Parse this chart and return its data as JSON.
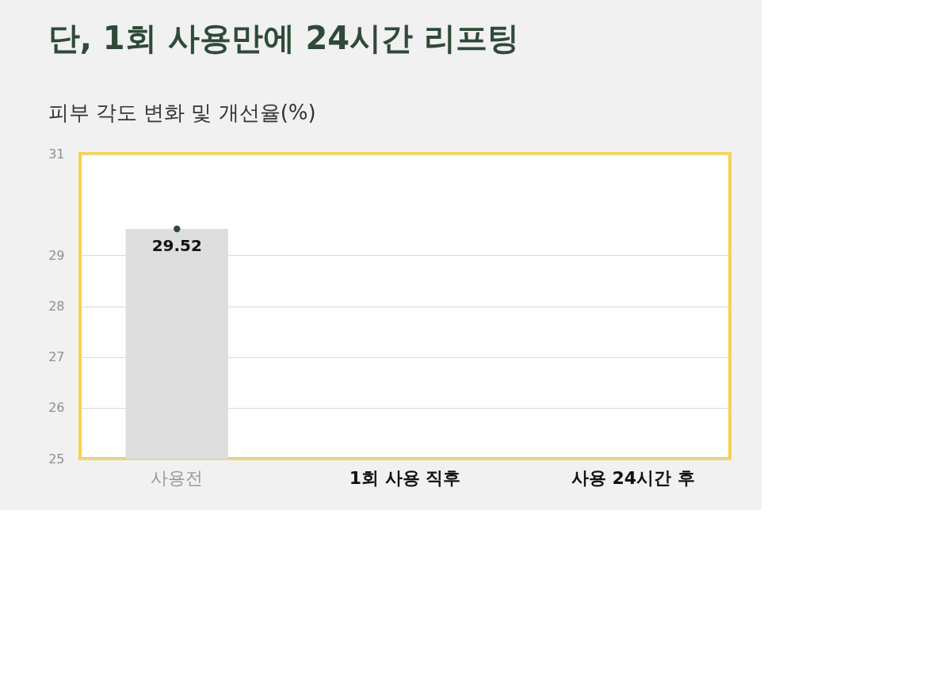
{
  "chart_data": {
    "type": "bar",
    "title": "단, 1회 사용만에  24시간 리프팅",
    "subtitle": "피부 각도 변화  및 개선율(%)",
    "categories": [
      "사용전",
      "1회 사용 직후",
      "사용 24시간 후"
    ],
    "series": [
      {
        "color": "#dedede",
        "values": [
          29.52,
          null,
          null
        ],
        "value_labels": [
          "29.52",
          null,
          null
        ]
      },
      {
        "type": "line",
        "color": "#2e4a3a",
        "marker": "circle",
        "values": [
          29.52,
          null,
          null
        ]
      }
    ],
    "ylim": [
      25,
      31
    ],
    "yticks": [
      25,
      26,
      27,
      28,
      29,
      31
    ],
    "grid": "y"
  }
}
